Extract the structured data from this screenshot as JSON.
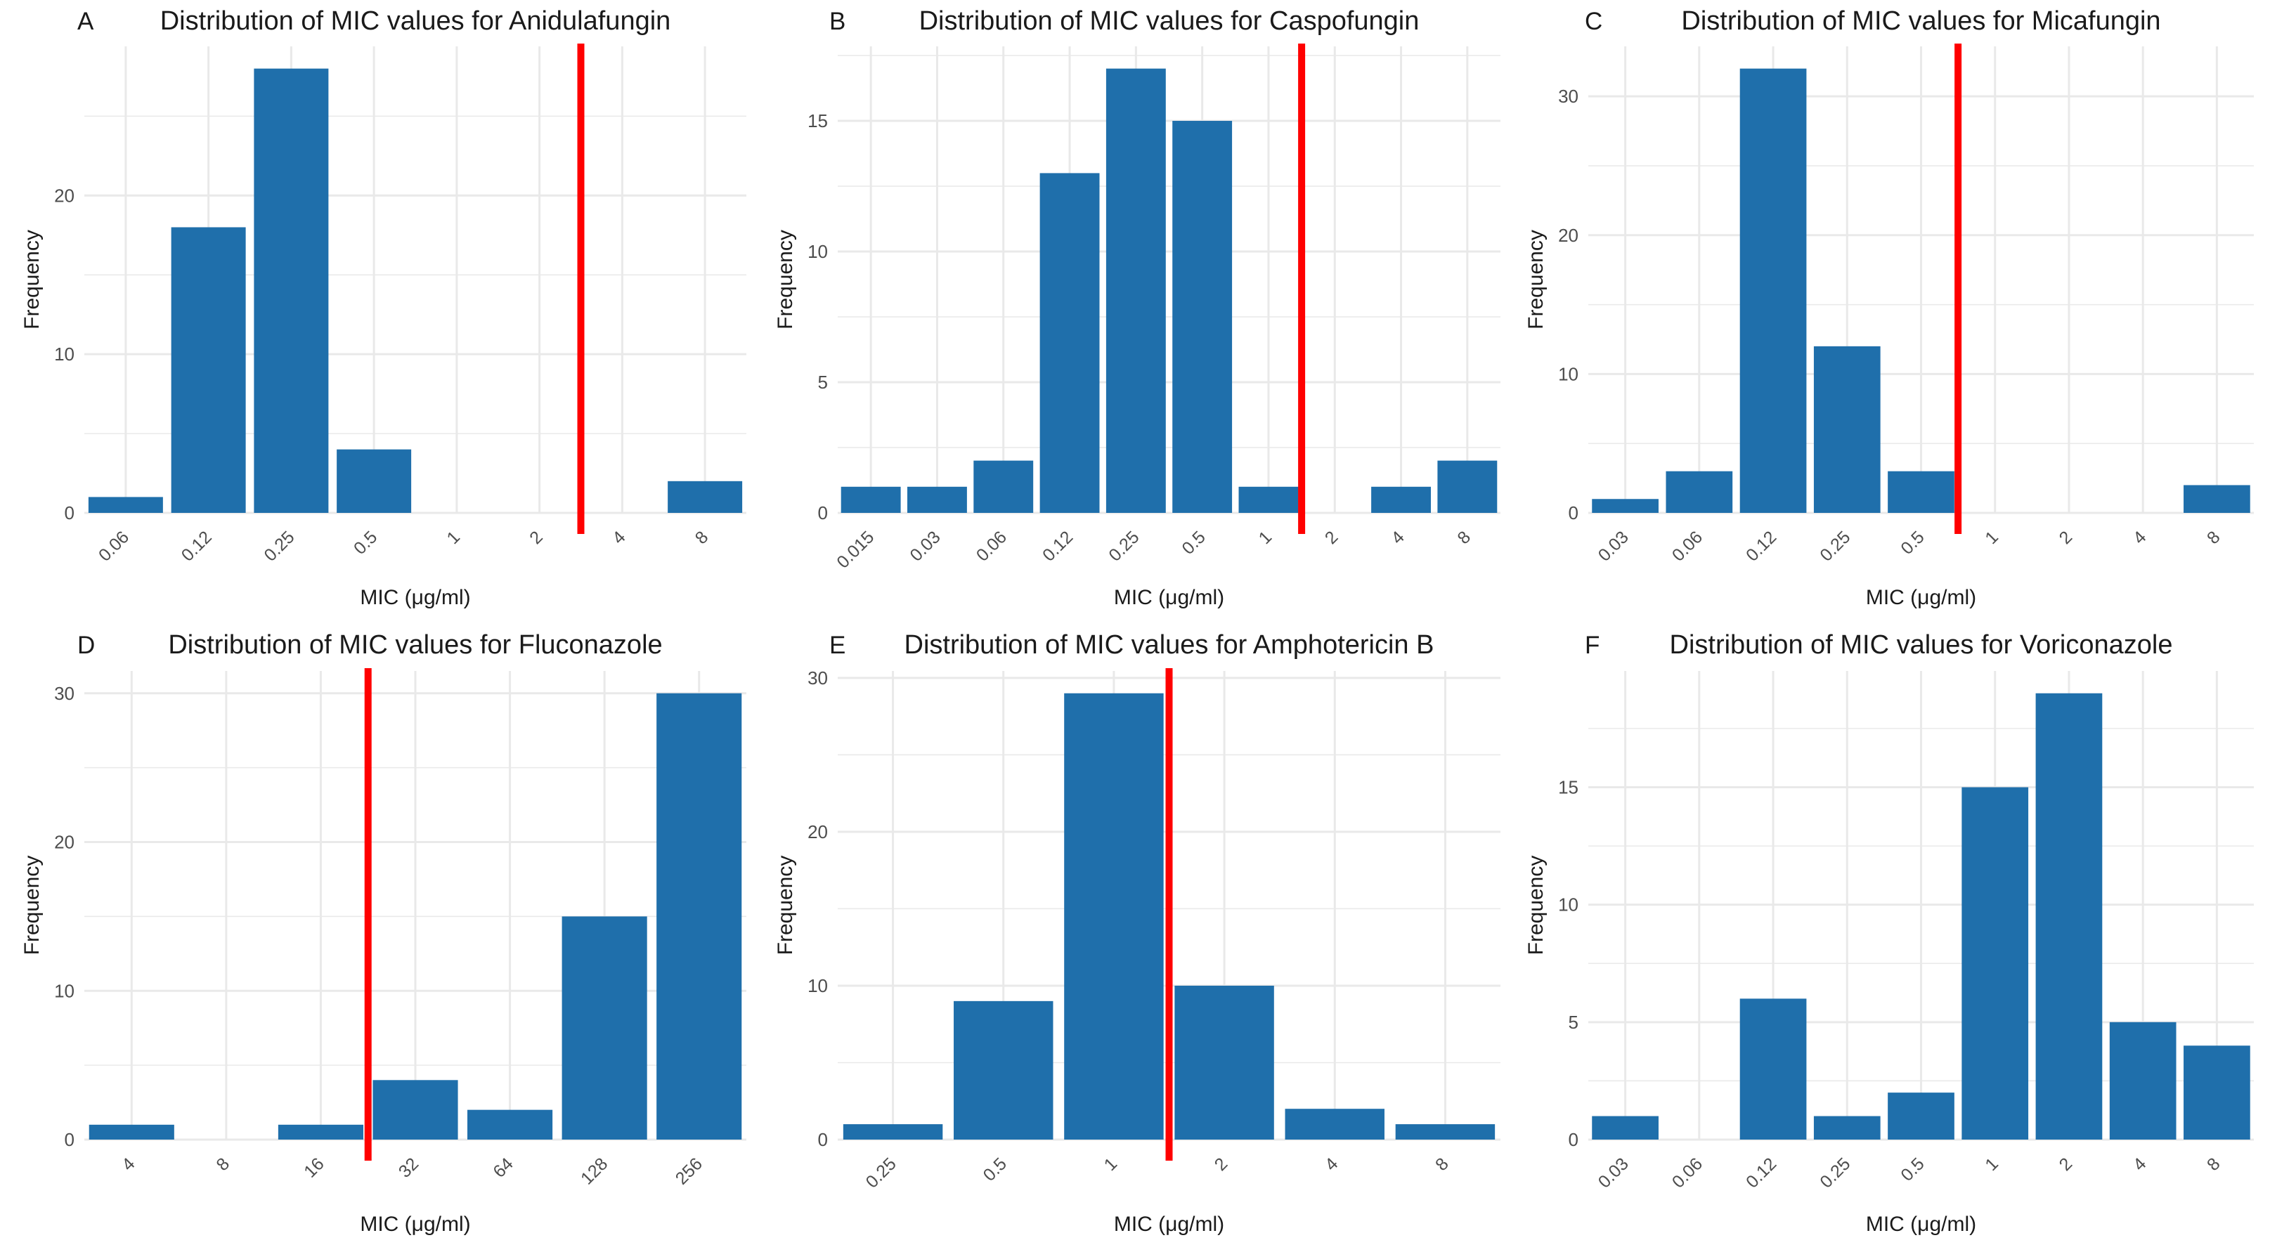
{
  "colors": {
    "bar": "#1f6fab",
    "breakpoint": "#ff0000",
    "grid": "#e9e9e9",
    "text": "#1a1a1a",
    "tick": "#4d4d4d"
  },
  "chart_data": [
    {
      "panel": "A",
      "type": "bar",
      "title": "Distribution of MIC values for Anidulafungin",
      "xlabel": "MIC (μg/ml)",
      "ylabel": "Frequency",
      "categories": [
        "0.06",
        "0.12",
        "0.25",
        "0.5",
        "1",
        "2",
        "4",
        "8"
      ],
      "values": [
        1,
        18,
        28,
        4,
        0,
        0,
        0,
        2
      ],
      "yticks": [
        0,
        10,
        20
      ],
      "ylim": [
        0,
        29.4
      ],
      "breakpoint_between": [
        "2",
        "4"
      ],
      "grid": true
    },
    {
      "panel": "B",
      "type": "bar",
      "title": "Distribution of MIC values for Caspofungin",
      "xlabel": "MIC (μg/ml)",
      "ylabel": "Frequency",
      "categories": [
        "0.015",
        "0.03",
        "0.06",
        "0.12",
        "0.25",
        "0.5",
        "1",
        "2",
        "4",
        "8"
      ],
      "values": [
        1,
        1,
        2,
        13,
        17,
        15,
        1,
        0,
        1,
        2
      ],
      "yticks": [
        0,
        5,
        10,
        15
      ],
      "ylim": [
        0,
        17.85
      ],
      "breakpoint_between": [
        "1",
        "2"
      ],
      "grid": true
    },
    {
      "panel": "C",
      "type": "bar",
      "title": "Distribution of MIC values for Micafungin",
      "xlabel": "MIC (μg/ml)",
      "ylabel": "Frequency",
      "categories": [
        "0.03",
        "0.06",
        "0.12",
        "0.25",
        "0.5",
        "1",
        "2",
        "4",
        "8"
      ],
      "values": [
        1,
        3,
        32,
        12,
        3,
        0,
        0,
        0,
        2
      ],
      "yticks": [
        0,
        10,
        20,
        30
      ],
      "ylim": [
        0,
        33.6
      ],
      "breakpoint_between": [
        "0.5",
        "1"
      ],
      "grid": true
    },
    {
      "panel": "D",
      "type": "bar",
      "title": "Distribution of MIC values for Fluconazole",
      "xlabel": "MIC (μg/ml)",
      "ylabel": "Frequency",
      "categories": [
        "4",
        "8",
        "16",
        "32",
        "64",
        "128",
        "256"
      ],
      "values": [
        1,
        0,
        1,
        4,
        2,
        15,
        30
      ],
      "yticks": [
        0,
        10,
        20,
        30
      ],
      "ylim": [
        0,
        31.5
      ],
      "breakpoint_between": [
        "16",
        "32"
      ],
      "grid": true
    },
    {
      "panel": "E",
      "type": "bar",
      "title": "Distribution of MIC values for Amphotericin B",
      "xlabel": "MIC (μg/ml)",
      "ylabel": "Frequency",
      "categories": [
        "0.25",
        "0.5",
        "1",
        "2",
        "4",
        "8"
      ],
      "values": [
        1,
        9,
        29,
        10,
        2,
        1
      ],
      "yticks": [
        0,
        10,
        20,
        30
      ],
      "ylim": [
        0,
        30.45
      ],
      "breakpoint_between": [
        "1",
        "2"
      ],
      "grid": true
    },
    {
      "panel": "F",
      "type": "bar",
      "title": "Distribution of MIC values for Voriconazole",
      "xlabel": "MIC (μg/ml)",
      "ylabel": "Frequency",
      "categories": [
        "0.03",
        "0.06",
        "0.12",
        "0.25",
        "0.5",
        "1",
        "2",
        "4",
        "8"
      ],
      "values": [
        1,
        0,
        6,
        1,
        2,
        15,
        19,
        5,
        4
      ],
      "yticks": [
        0,
        5,
        10,
        15
      ],
      "ylim": [
        0,
        19.95
      ],
      "breakpoint": null,
      "grid": true
    }
  ]
}
